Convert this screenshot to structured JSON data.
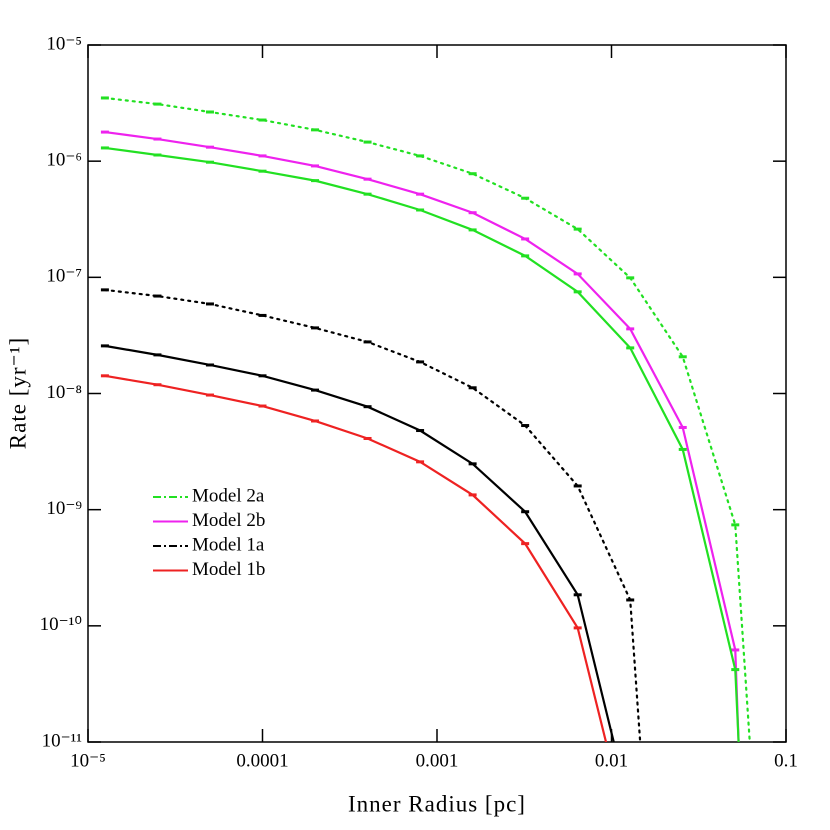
{
  "chart_data": {
    "type": "line",
    "xlabel": "Inner Radius [pc]",
    "ylabel": "Rate [yr⁻¹]",
    "xscale": "log",
    "yscale": "log",
    "xlim": [
      1e-05,
      0.1
    ],
    "ylim": [
      1e-11,
      1e-05
    ],
    "xticks": [
      {
        "value": 1e-05,
        "label": "10⁻⁵"
      },
      0.0001,
      0.001,
      0.01,
      0.1
    ],
    "yticks": [
      {
        "value": 1e-11,
        "label": "10⁻¹¹"
      },
      {
        "value": 1e-10,
        "label": "10⁻¹⁰"
      },
      {
        "value": 1e-09,
        "label": "10⁻⁹"
      },
      {
        "value": 1e-08,
        "label": "10⁻⁸"
      },
      {
        "value": 1e-07,
        "label": "10⁻⁷"
      },
      {
        "value": 1e-06,
        "label": "10⁻⁶"
      },
      {
        "value": 1e-05,
        "label": "10⁻⁵"
      }
    ],
    "legend": "lower-left",
    "series": [
      {
        "name": "Model 2a",
        "color": "#22e022",
        "linestyle": "dotted",
        "x": [
          1.25e-05,
          2.5e-05,
          5e-05,
          0.0001,
          0.0002,
          0.0004,
          0.0008,
          0.0016,
          0.0032,
          0.0064,
          0.0128,
          0.0256,
          0.0512,
          0.062
        ],
        "values": [
          3.5e-06,
          3.1e-06,
          2.65e-06,
          2.26e-06,
          1.86e-06,
          1.46e-06,
          1.11e-06,
          7.8e-07,
          4.8e-07,
          2.6e-07,
          9.9e-08,
          2.07e-08,
          7.4e-10,
          1e-11
        ]
      },
      {
        "name": "Model 2b",
        "color": "#ee22ee",
        "linestyle": "solid",
        "x": [
          1.25e-05,
          2.5e-05,
          5e-05,
          0.0001,
          0.0002,
          0.0004,
          0.0008,
          0.0016,
          0.0032,
          0.0064,
          0.0128,
          0.0256,
          0.0512,
          0.0535
        ],
        "values": [
          1.78e-06,
          1.55e-06,
          1.32e-06,
          1.11e-06,
          9.1e-07,
          7e-07,
          5.2e-07,
          3.6e-07,
          2.14e-07,
          1.07e-07,
          3.6e-08,
          5.1e-09,
          6.2e-11,
          1e-11
        ]
      },
      {
        "color": "#22e022",
        "linestyle": "solid",
        "x": [
          1.25e-05,
          2.5e-05,
          5e-05,
          0.0001,
          0.0002,
          0.0004,
          0.0008,
          0.0016,
          0.0032,
          0.0064,
          0.0128,
          0.0256,
          0.0512,
          0.0535
        ],
        "values": [
          1.3e-06,
          1.13e-06,
          9.8e-07,
          8.2e-07,
          6.8e-07,
          5.2e-07,
          3.8e-07,
          2.56e-07,
          1.53e-07,
          7.5e-08,
          2.47e-08,
          3.3e-09,
          4.2e-11,
          1e-11
        ]
      },
      {
        "name": "Model 1a",
        "color": "#000000",
        "linestyle": "dotted",
        "x": [
          1.25e-05,
          2.5e-05,
          5e-05,
          0.0001,
          0.0002,
          0.0004,
          0.0008,
          0.0016,
          0.0032,
          0.0064,
          0.0128,
          0.0146
        ],
        "values": [
          7.8e-08,
          6.9e-08,
          5.9e-08,
          4.7e-08,
          3.67e-08,
          2.78e-08,
          1.87e-08,
          1.12e-08,
          5.3e-09,
          1.6e-09,
          1.67e-10,
          1e-11
        ]
      },
      {
        "color": "#000000",
        "linestyle": "solid",
        "x": [
          1.25e-05,
          2.5e-05,
          5e-05,
          0.0001,
          0.0002,
          0.0004,
          0.0008,
          0.0016,
          0.0032,
          0.0064,
          0.0103
        ],
        "values": [
          2.57e-08,
          2.15e-08,
          1.76e-08,
          1.42e-08,
          1.07e-08,
          7.7e-09,
          4.8e-09,
          2.48e-09,
          9.6e-10,
          1.85e-10,
          1e-11
        ]
      },
      {
        "name": "Model 1b",
        "color": "#ee2222",
        "linestyle": "solid",
        "x": [
          1.25e-05,
          2.5e-05,
          5e-05,
          0.0001,
          0.0002,
          0.0004,
          0.0008,
          0.0016,
          0.0032,
          0.0064,
          0.0093
        ],
        "values": [
          1.42e-08,
          1.19e-08,
          9.7e-09,
          7.8e-09,
          5.8e-09,
          4.1e-09,
          2.58e-09,
          1.34e-09,
          5.1e-10,
          9.6e-11,
          1e-11
        ]
      }
    ]
  }
}
